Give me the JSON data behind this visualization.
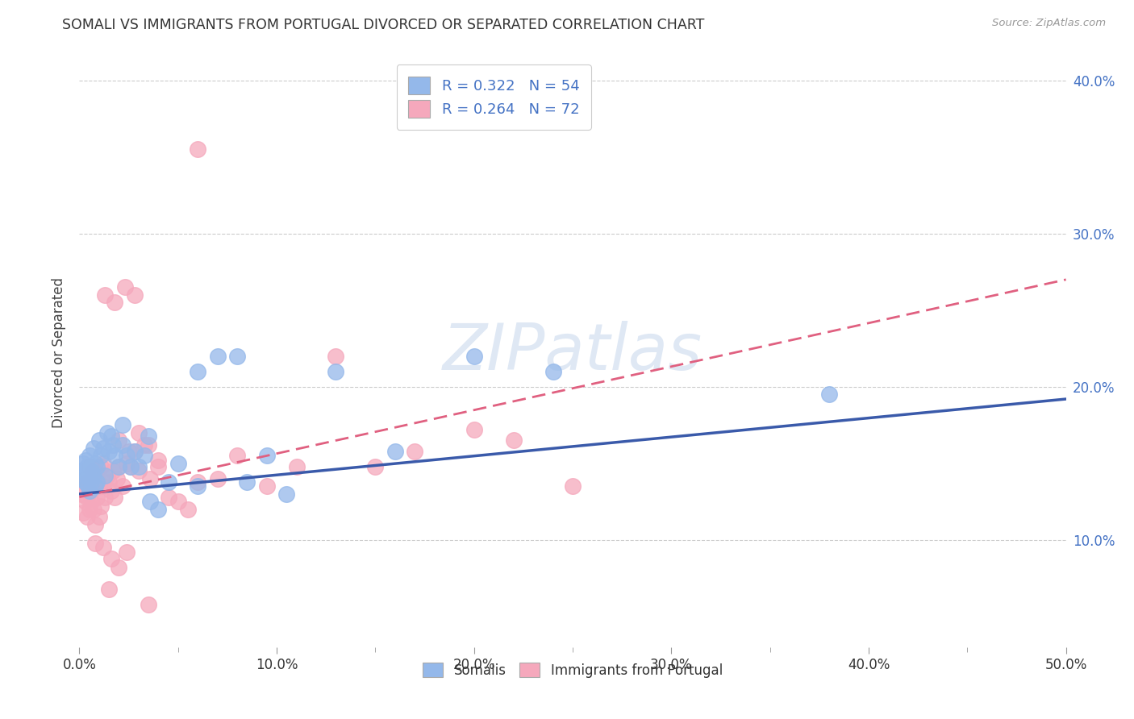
{
  "title": "SOMALI VS IMMIGRANTS FROM PORTUGAL DIVORCED OR SEPARATED CORRELATION CHART",
  "source": "Source: ZipAtlas.com",
  "ylabel": "Divorced or Separated",
  "xmin": 0.0,
  "xmax": 0.5,
  "ymin": 0.03,
  "ymax": 0.415,
  "somali_color": "#94b8ea",
  "somali_edge": "#6090cc",
  "portugal_color": "#f5a8bc",
  "portugal_edge": "#d06080",
  "somali_line_color": "#3a5aaa",
  "portugal_line_color": "#e06080",
  "somali_R": 0.322,
  "somali_N": 54,
  "portugal_R": 0.264,
  "portugal_N": 72,
  "legend_label_somali": "Somalis",
  "legend_label_portugal": "Immigrants from Portugal",
  "watermark": "ZIPatlas",
  "ytick_vals": [
    0.1,
    0.2,
    0.3,
    0.4
  ],
  "ytick_labels": [
    "10.0%",
    "20.0%",
    "30.0%",
    "40.0%"
  ],
  "xtick_vals": [
    0.0,
    0.1,
    0.2,
    0.3,
    0.4,
    0.5
  ],
  "xtick_labels": [
    "0.0%",
    "10.0%",
    "20.0%",
    "30.0%",
    "40.0%",
    "50.0%"
  ],
  "somali_line_x0": 0.0,
  "somali_line_y0": 0.13,
  "somali_line_x1": 0.5,
  "somali_line_y1": 0.192,
  "portugal_line_x0": 0.0,
  "portugal_line_y0": 0.128,
  "portugal_line_x1": 0.5,
  "portugal_line_y1": 0.27,
  "somali_x": [
    0.001,
    0.002,
    0.002,
    0.003,
    0.003,
    0.003,
    0.004,
    0.004,
    0.004,
    0.005,
    0.005,
    0.005,
    0.006,
    0.006,
    0.007,
    0.007,
    0.008,
    0.008,
    0.009,
    0.009,
    0.01,
    0.011,
    0.012,
    0.013,
    0.014,
    0.015,
    0.016,
    0.017,
    0.018,
    0.02,
    0.022,
    0.024,
    0.026,
    0.028,
    0.03,
    0.033,
    0.036,
    0.04,
    0.045,
    0.05,
    0.06,
    0.07,
    0.08,
    0.095,
    0.105,
    0.13,
    0.16,
    0.2,
    0.24,
    0.38,
    0.022,
    0.035,
    0.06,
    0.085
  ],
  "somali_y": [
    0.145,
    0.14,
    0.15,
    0.138,
    0.145,
    0.152,
    0.136,
    0.142,
    0.148,
    0.14,
    0.155,
    0.132,
    0.145,
    0.138,
    0.16,
    0.142,
    0.135,
    0.15,
    0.148,
    0.138,
    0.165,
    0.155,
    0.16,
    0.142,
    0.17,
    0.158,
    0.168,
    0.162,
    0.155,
    0.148,
    0.162,
    0.155,
    0.148,
    0.158,
    0.148,
    0.155,
    0.125,
    0.12,
    0.138,
    0.15,
    0.21,
    0.22,
    0.22,
    0.155,
    0.13,
    0.21,
    0.158,
    0.22,
    0.21,
    0.195,
    0.175,
    0.168,
    0.135,
    0.138
  ],
  "portugal_x": [
    0.001,
    0.002,
    0.002,
    0.003,
    0.003,
    0.004,
    0.004,
    0.004,
    0.005,
    0.005,
    0.005,
    0.006,
    0.006,
    0.007,
    0.007,
    0.008,
    0.008,
    0.009,
    0.009,
    0.01,
    0.01,
    0.011,
    0.011,
    0.012,
    0.012,
    0.013,
    0.014,
    0.015,
    0.016,
    0.017,
    0.018,
    0.019,
    0.02,
    0.022,
    0.024,
    0.026,
    0.028,
    0.03,
    0.033,
    0.036,
    0.04,
    0.045,
    0.05,
    0.055,
    0.06,
    0.07,
    0.08,
    0.095,
    0.11,
    0.13,
    0.15,
    0.17,
    0.2,
    0.22,
    0.25,
    0.02,
    0.025,
    0.03,
    0.035,
    0.04,
    0.013,
    0.018,
    0.023,
    0.028,
    0.012,
    0.016,
    0.02,
    0.024,
    0.008,
    0.06,
    0.015,
    0.035
  ],
  "portugal_y": [
    0.13,
    0.135,
    0.118,
    0.125,
    0.14,
    0.115,
    0.128,
    0.138,
    0.12,
    0.132,
    0.148,
    0.125,
    0.138,
    0.12,
    0.145,
    0.11,
    0.138,
    0.128,
    0.142,
    0.115,
    0.135,
    0.148,
    0.122,
    0.135,
    0.15,
    0.128,
    0.142,
    0.138,
    0.132,
    0.145,
    0.128,
    0.14,
    0.148,
    0.135,
    0.15,
    0.148,
    0.158,
    0.145,
    0.162,
    0.14,
    0.152,
    0.128,
    0.125,
    0.12,
    0.138,
    0.14,
    0.155,
    0.135,
    0.148,
    0.22,
    0.148,
    0.158,
    0.172,
    0.165,
    0.135,
    0.165,
    0.158,
    0.17,
    0.162,
    0.148,
    0.26,
    0.255,
    0.265,
    0.26,
    0.095,
    0.088,
    0.082,
    0.092,
    0.098,
    0.355,
    0.068,
    0.058
  ]
}
